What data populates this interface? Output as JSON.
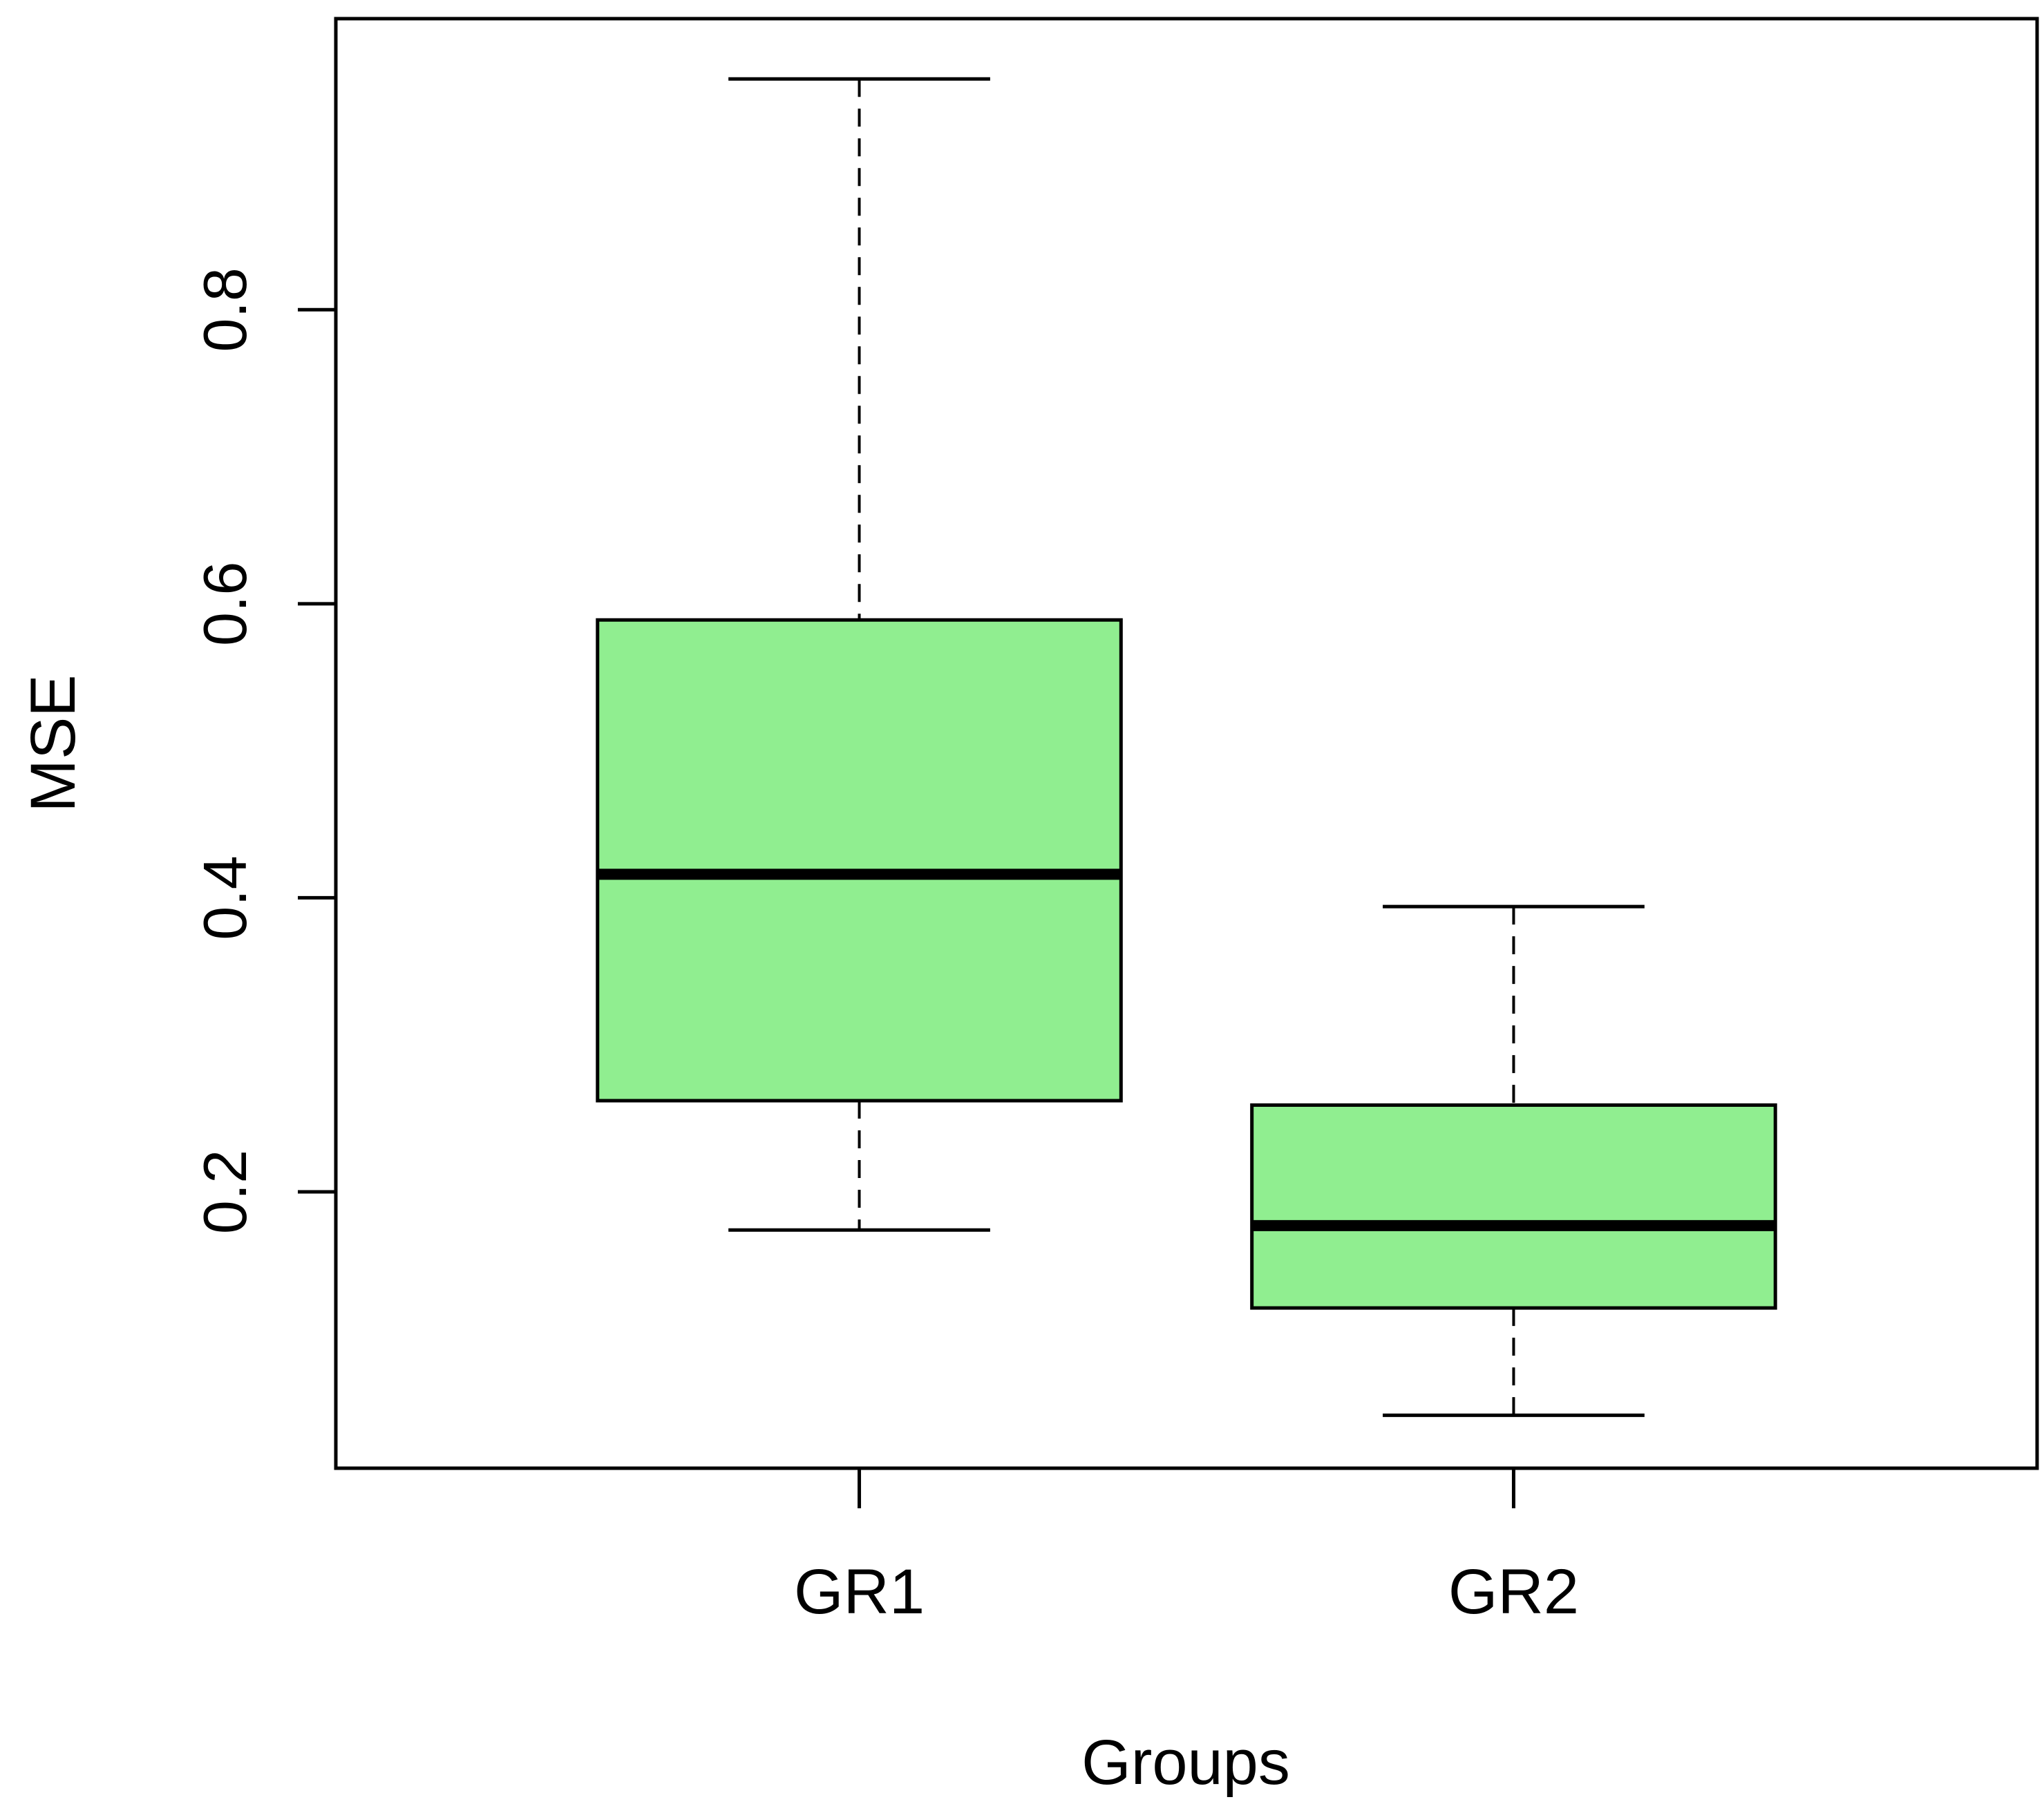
{
  "chart_data": {
    "type": "boxplot",
    "title": "",
    "xlabel": "Groups",
    "ylabel": "MSE",
    "ylim": [
      0.012,
      0.998
    ],
    "yticks": [
      0.2,
      0.4,
      0.6,
      0.8
    ],
    "ytick_labels": [
      "0.2",
      "0.4",
      "0.6",
      "0.8"
    ],
    "grid": false,
    "legend": "none",
    "box_color": "#90EE90",
    "categories": [
      "GR1",
      "GR2"
    ],
    "boxes": [
      {
        "category": "GR1",
        "whisker_low": 0.174,
        "q1": 0.262,
        "median": 0.416,
        "q3": 0.589,
        "whisker_high": 0.957
      },
      {
        "category": "GR2",
        "whisker_low": 0.048,
        "q1": 0.121,
        "median": 0.177,
        "q3": 0.259,
        "whisker_high": 0.394
      }
    ]
  }
}
